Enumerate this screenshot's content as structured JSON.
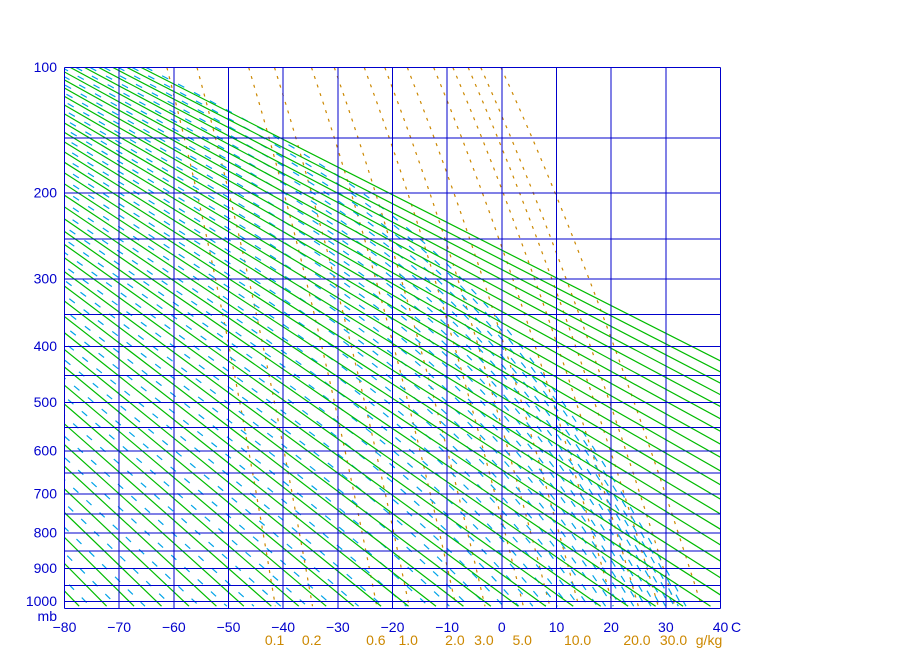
{
  "chart_data": {
    "type": "line",
    "subtype": "stuve-thermodynamic-diagram",
    "title": "",
    "grid": "on",
    "pressure_axis": {
      "unit_label": "mb",
      "min_mb": 100,
      "max_mb": 1000,
      "gridline_step_mb": 50,
      "labeled_levels_mb": [
        100,
        200,
        300,
        400,
        500,
        600,
        700,
        800,
        900,
        1000
      ],
      "scale": "linear in p^0.2857 (Stuve)"
    },
    "temperature_axis": {
      "unit_label": "C",
      "min_c": -80,
      "max_c": 40,
      "tick_step_c": 10,
      "tick_values": [
        -80,
        -70,
        -60,
        -50,
        -40,
        -30,
        -20,
        -10,
        0,
        10,
        20,
        30,
        40
      ],
      "tick_labels": [
        "−80",
        "−70",
        "−60",
        "−50",
        "−40",
        "−30",
        "−20",
        "−10",
        "0",
        "10",
        "20",
        "30",
        "40"
      ]
    },
    "dry_adiabats": {
      "name": "dry adiabats (potential temperature)",
      "theta_k_min": 195,
      "theta_k_max": 400,
      "step_k": 5,
      "line_style": "solid",
      "color": "#00BB00"
    },
    "moist_adiabats": {
      "name": "saturated pseudo-adiabats (equivalent potential temperature)",
      "theta_e_k_min": 197,
      "theta_e_k_max": 402,
      "step_k": 5,
      "line_style": "dashed",
      "color": "#00A3E8"
    },
    "mixing_ratio_lines": {
      "name": "saturation mixing ratio",
      "unit_label": "g/kg",
      "values_g_kg": [
        0.1,
        0.2,
        0.6,
        1.0,
        2.0,
        3.0,
        5.0,
        7.0,
        10.0,
        15.0,
        20.0,
        25.0,
        30.0,
        40.0
      ],
      "labels": [
        {
          "text": "0.1",
          "value": 0.1
        },
        {
          "text": "0.2",
          "value": 0.2
        },
        {
          "text": "0.6",
          "value": 0.6
        },
        {
          "text": "1.0",
          "value": 1.0
        },
        {
          "text": "2.0",
          "value": 2.0
        },
        {
          "text": "3.0",
          "value": 3.0
        },
        {
          "text": "5.0",
          "value": 5.0
        },
        {
          "text": "10.0",
          "value": 10.0
        },
        {
          "text": "20.0",
          "value": 20.0
        },
        {
          "text": "30.0",
          "value": 30.0
        }
      ],
      "line_style": "dashed",
      "color": "#CC8800"
    },
    "colors": {
      "grid": "#0000CC",
      "pressure_labels": "#0000CC",
      "temperature_labels": "#0000CC",
      "mixing_ratio_labels": "#CC8800",
      "background": "#FFFFFF"
    }
  }
}
